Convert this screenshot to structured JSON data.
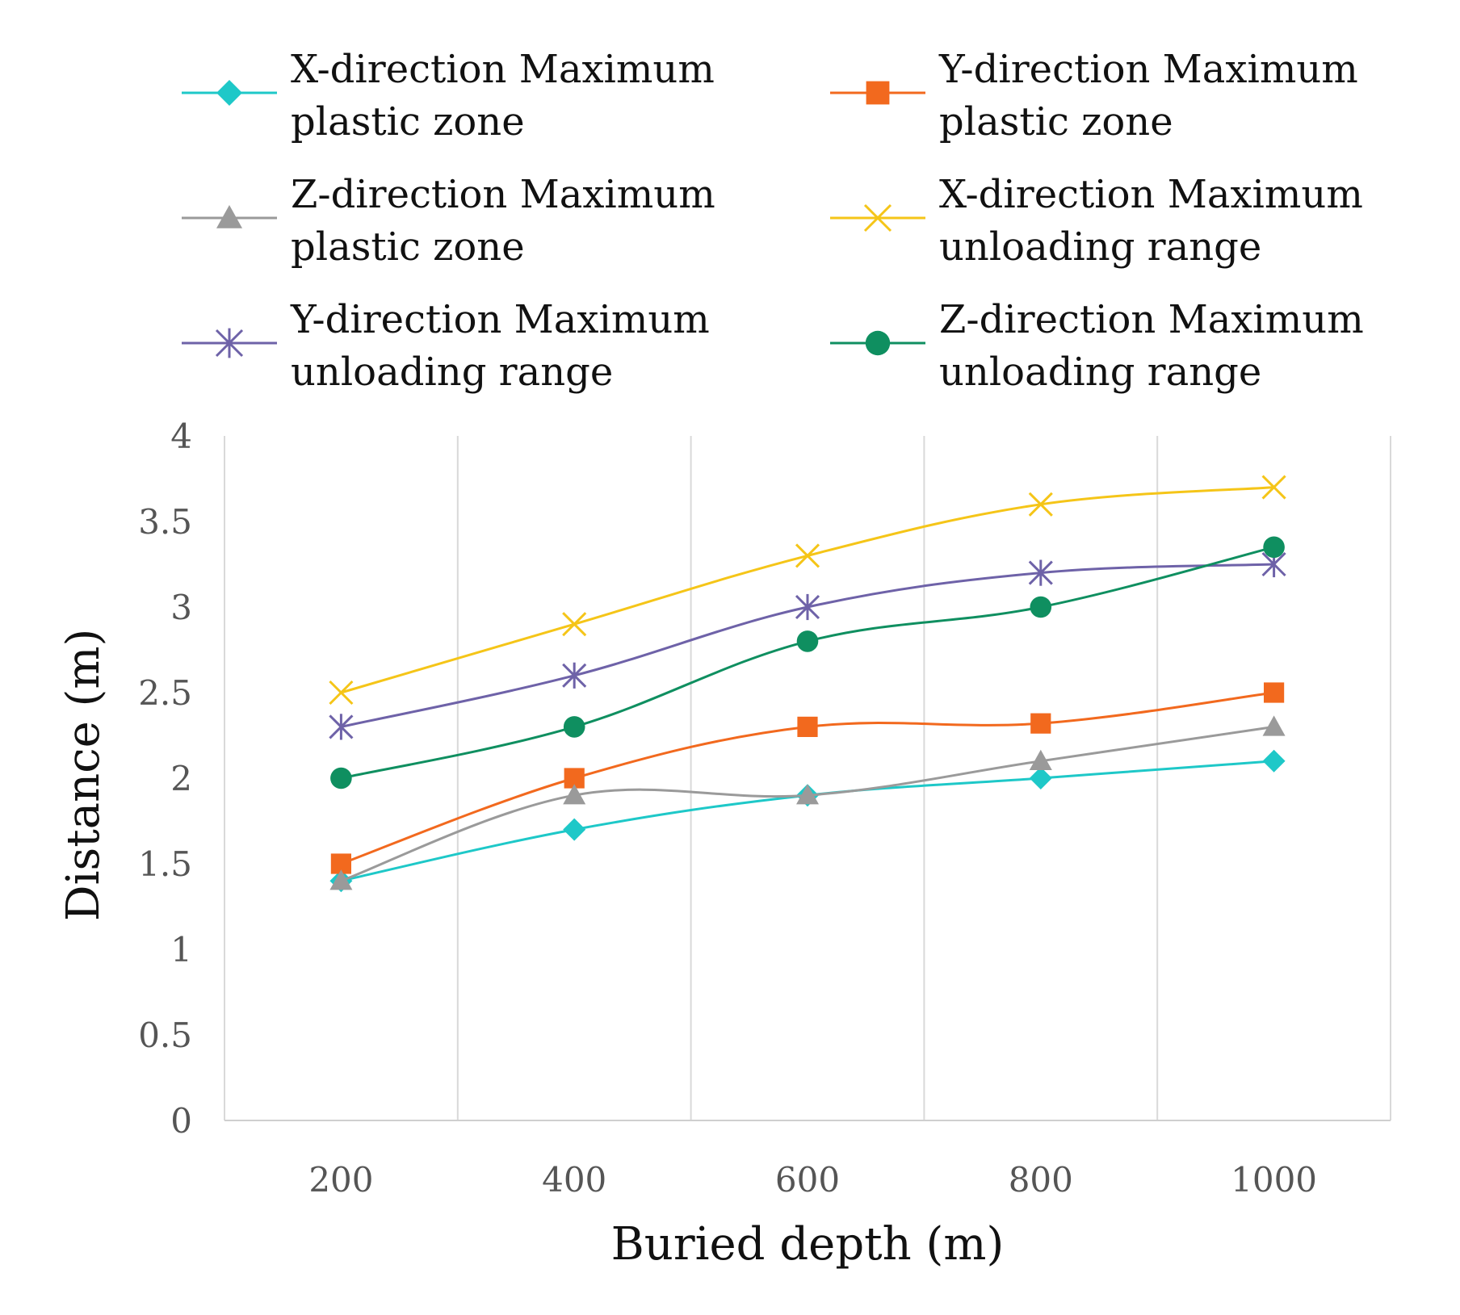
{
  "chart_data": {
    "type": "line",
    "x": [
      200,
      400,
      600,
      800,
      1000
    ],
    "xlim": [
      100,
      1100
    ],
    "ylim": [
      0,
      4
    ],
    "x_ticks": [
      "200",
      "400",
      "600",
      "800",
      "1000"
    ],
    "y_ticks": [
      "0",
      "0.5",
      "1",
      "1.5",
      "2",
      "2.5",
      "3",
      "3.5",
      "4"
    ],
    "xlabel": "Buried depth (m)",
    "ylabel": "Distance (m)",
    "grid": "vertical",
    "legend_position": "top",
    "series": [
      {
        "name_line1": "X-direction Maximum",
        "name_line2": "plastic zone",
        "color": "#1ec8c8",
        "marker": "diamond",
        "values": [
          1.4,
          1.7,
          1.9,
          2.0,
          2.1
        ]
      },
      {
        "name_line1": "Y-direction Maximum",
        "name_line2": "plastic zone",
        "color": "#f2691e",
        "marker": "square",
        "values": [
          1.5,
          2.0,
          2.3,
          2.32,
          2.5
        ]
      },
      {
        "name_line1": "Z-direction Maximum",
        "name_line2": "plastic zone",
        "color": "#9a9a9a",
        "marker": "triangle",
        "values": [
          1.4,
          1.9,
          1.9,
          2.1,
          2.3
        ]
      },
      {
        "name_line1": "X-direction Maximum",
        "name_line2": "unloading range",
        "color": "#f5c518",
        "marker": "x",
        "values": [
          2.5,
          2.9,
          3.3,
          3.6,
          3.7
        ]
      },
      {
        "name_line1": "Y-direction Maximum",
        "name_line2": "unloading range",
        "color": "#6e62a8",
        "marker": "star",
        "values": [
          2.3,
          2.6,
          3.0,
          3.2,
          3.25
        ]
      },
      {
        "name_line1": "Z-direction Maximum",
        "name_line2": "unloading range",
        "color": "#0f8f60",
        "marker": "circle",
        "values": [
          2.0,
          2.3,
          2.8,
          3.0,
          3.35
        ]
      }
    ]
  }
}
